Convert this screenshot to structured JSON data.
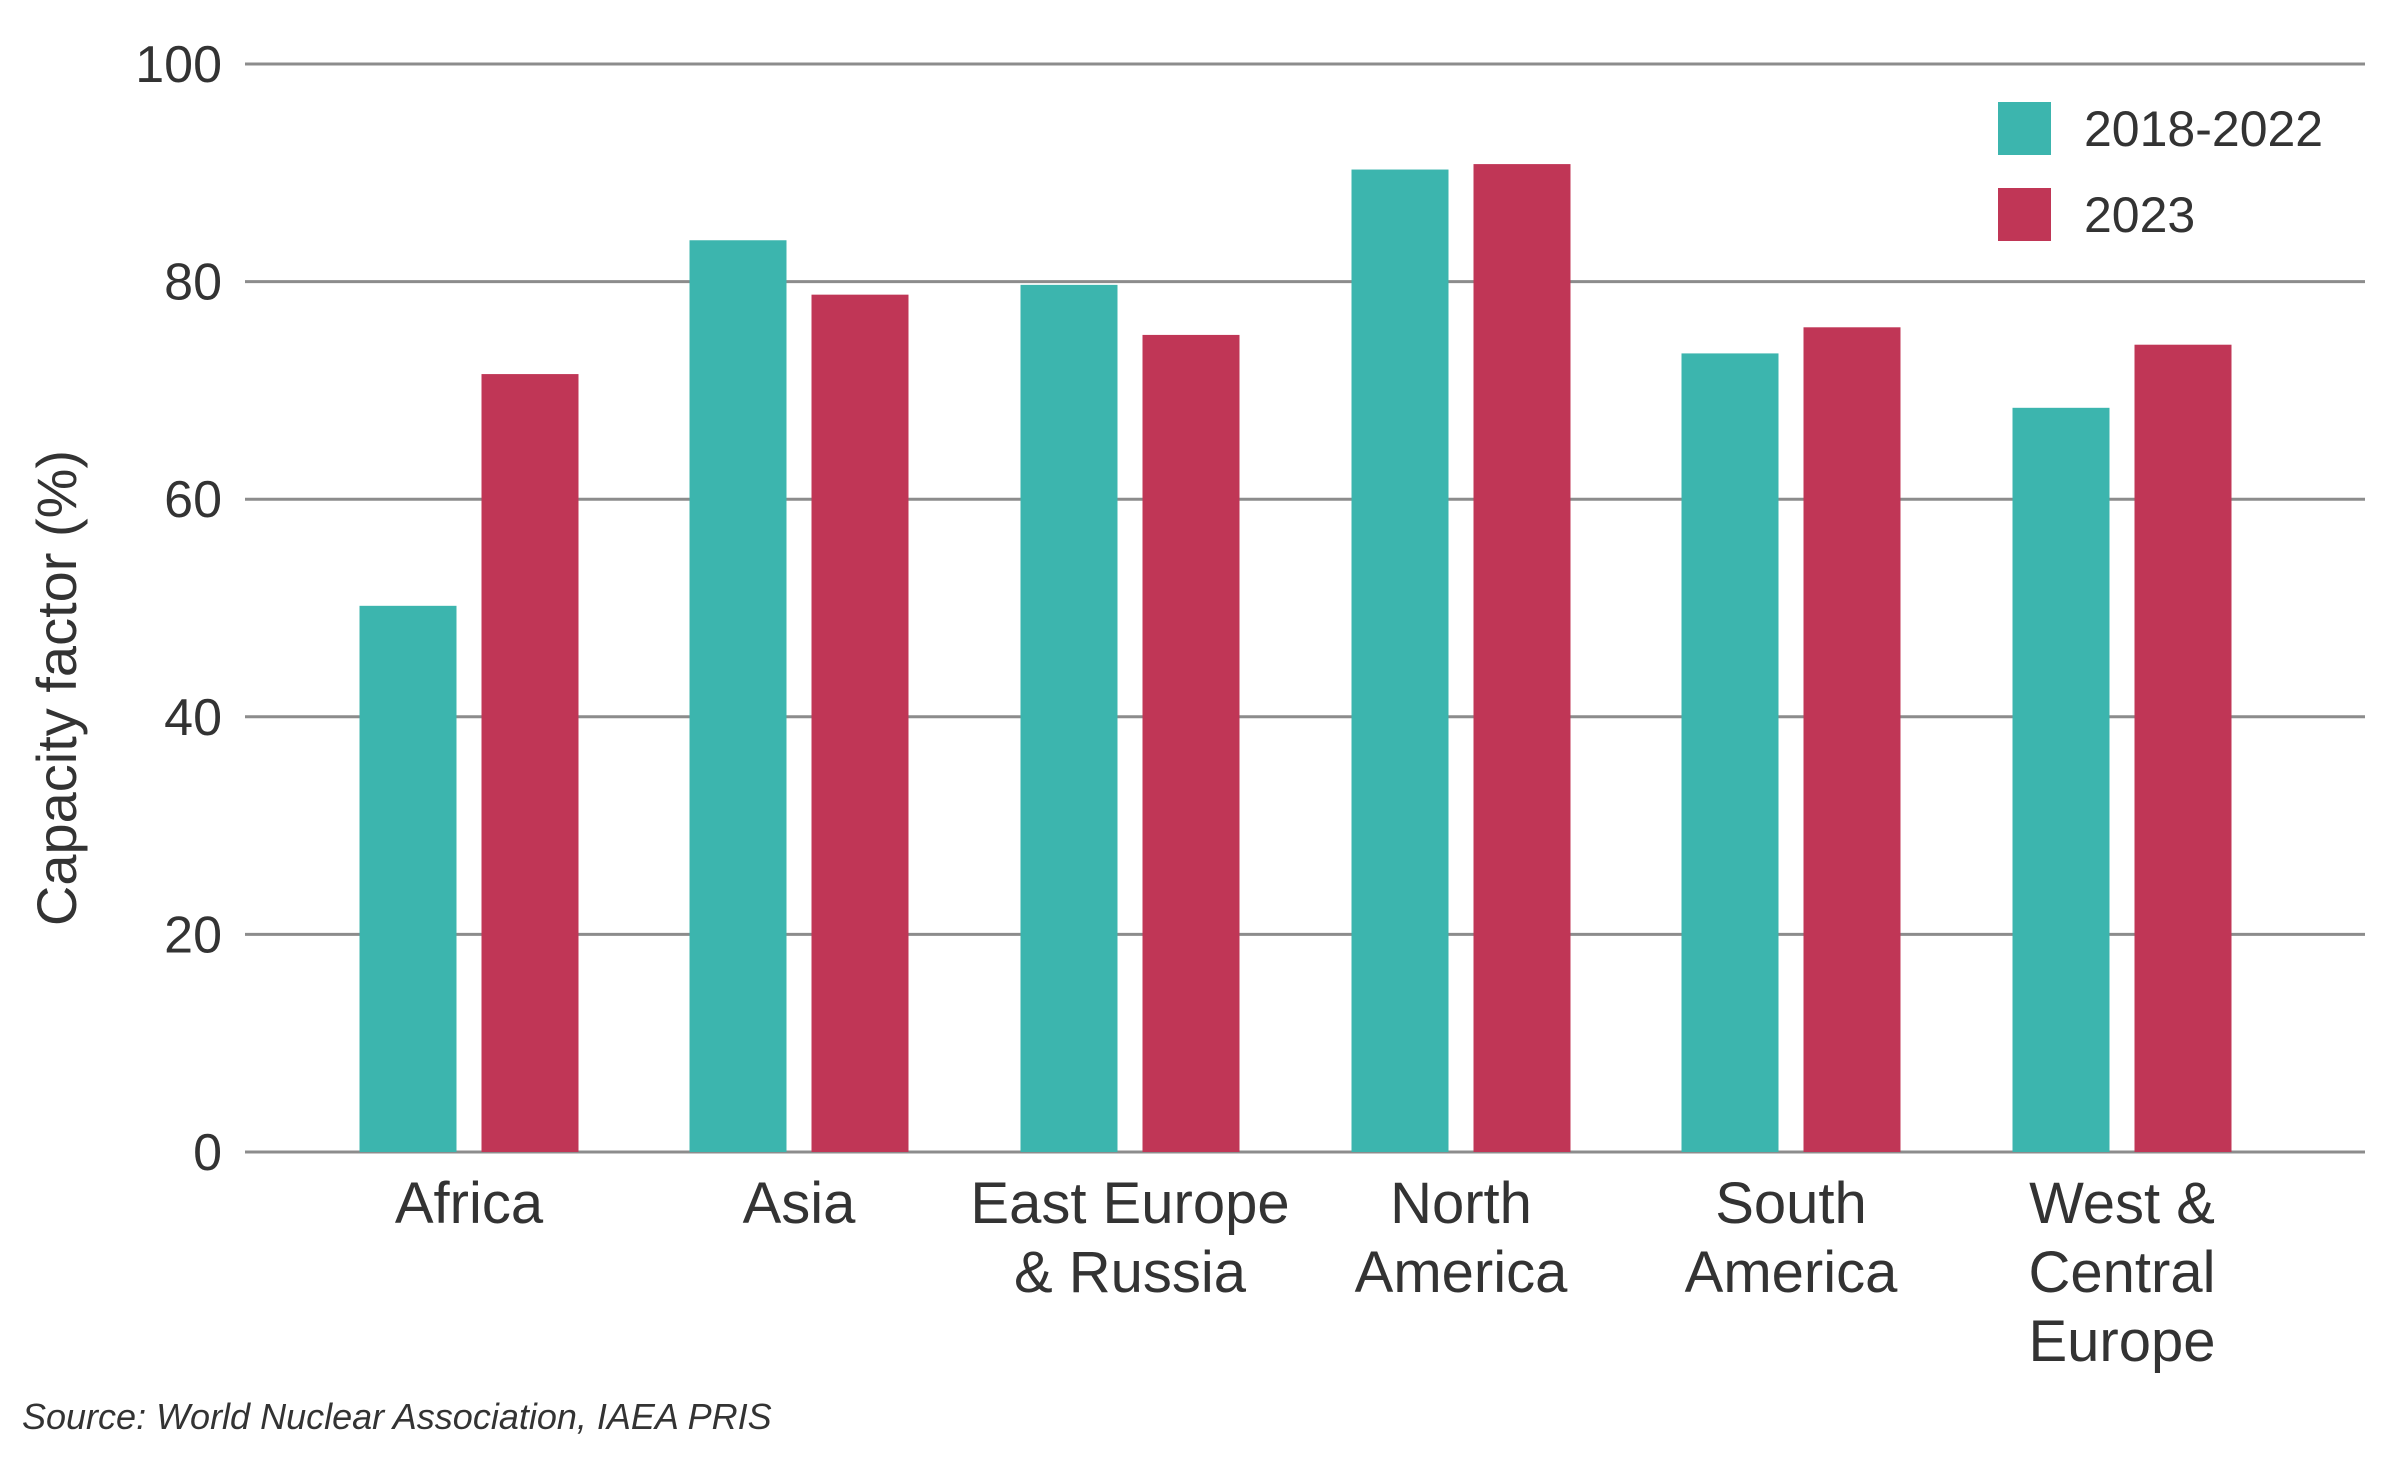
{
  "chart_data": {
    "type": "bar",
    "categories": [
      [
        "Africa"
      ],
      [
        "Asia"
      ],
      [
        "East Europe",
        "& Russia"
      ],
      [
        "North",
        "America"
      ],
      [
        "South",
        "America"
      ],
      [
        "West &",
        "Central",
        "Europe"
      ]
    ],
    "series": [
      {
        "name": "2018-2022",
        "color": "#3cb5ae",
        "values": [
          50.2,
          83.8,
          79.7,
          90.3,
          73.4,
          68.4
        ]
      },
      {
        "name": "2023",
        "color": "#c03656",
        "values": [
          71.5,
          78.8,
          75.1,
          90.8,
          75.8,
          74.2
        ]
      }
    ],
    "ylabel": "Capacity factor (%)",
    "xlabel": "",
    "ylim": [
      0,
      100
    ],
    "yticks": [
      0,
      20,
      40,
      60,
      80,
      100
    ],
    "grid": true,
    "legend_position": "top-right"
  },
  "source": "Source: World Nuclear Association, IAEA PRIS"
}
